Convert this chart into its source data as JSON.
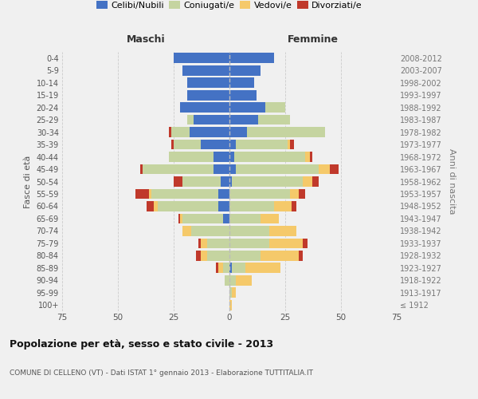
{
  "age_groups": [
    "100+",
    "95-99",
    "90-94",
    "85-89",
    "80-84",
    "75-79",
    "70-74",
    "65-69",
    "60-64",
    "55-59",
    "50-54",
    "45-49",
    "40-44",
    "35-39",
    "30-34",
    "25-29",
    "20-24",
    "15-19",
    "10-14",
    "5-9",
    "0-4"
  ],
  "birth_years": [
    "≤ 1912",
    "1913-1917",
    "1918-1922",
    "1923-1927",
    "1928-1932",
    "1933-1937",
    "1938-1942",
    "1943-1947",
    "1948-1952",
    "1953-1957",
    "1958-1962",
    "1963-1967",
    "1968-1972",
    "1973-1977",
    "1978-1982",
    "1983-1987",
    "1988-1992",
    "1993-1997",
    "1998-2002",
    "2003-2007",
    "2008-2012"
  ],
  "colors": {
    "celibi": "#4472C4",
    "coniugati": "#c5d4a0",
    "vedovi": "#f5c96a",
    "divorziati": "#c0392b"
  },
  "maschi": {
    "celibi": [
      0,
      0,
      0,
      0,
      0,
      0,
      0,
      3,
      5,
      5,
      4,
      7,
      7,
      13,
      18,
      16,
      22,
      19,
      19,
      21,
      25
    ],
    "coniugati": [
      0,
      0,
      2,
      3,
      10,
      10,
      17,
      18,
      27,
      30,
      17,
      32,
      20,
      12,
      8,
      3,
      0,
      0,
      0,
      0,
      0
    ],
    "vedovi": [
      0,
      0,
      0,
      2,
      3,
      3,
      4,
      1,
      2,
      1,
      0,
      0,
      0,
      0,
      0,
      0,
      0,
      0,
      0,
      0,
      0
    ],
    "divorziati": [
      0,
      0,
      0,
      1,
      2,
      1,
      0,
      1,
      3,
      6,
      4,
      1,
      0,
      1,
      1,
      0,
      0,
      0,
      0,
      0,
      0
    ]
  },
  "femmine": {
    "nubili": [
      0,
      0,
      0,
      1,
      0,
      0,
      0,
      0,
      0,
      0,
      1,
      3,
      2,
      3,
      8,
      13,
      16,
      12,
      11,
      14,
      20
    ],
    "coniugate": [
      0,
      1,
      3,
      6,
      14,
      18,
      18,
      14,
      20,
      27,
      32,
      37,
      32,
      23,
      35,
      14,
      9,
      0,
      0,
      0,
      0
    ],
    "vedove": [
      1,
      2,
      7,
      16,
      17,
      15,
      12,
      8,
      8,
      4,
      4,
      5,
      2,
      1,
      0,
      0,
      0,
      0,
      0,
      0,
      0
    ],
    "divorziate": [
      0,
      0,
      0,
      0,
      2,
      2,
      0,
      0,
      2,
      3,
      3,
      4,
      1,
      2,
      0,
      0,
      0,
      0,
      0,
      0,
      0
    ]
  },
  "xlim": 75,
  "title": "Popolazione per età, sesso e stato civile - 2013",
  "subtitle": "COMUNE DI CELLENO (VT) - Dati ISTAT 1° gennaio 2013 - Elaborazione TUTTITALIA.IT",
  "xlabel_left": "Maschi",
  "xlabel_right": "Femmine",
  "ylabel_left": "Fasce di età",
  "ylabel_right": "Anni di nascita",
  "legend_labels": [
    "Celibi/Nubili",
    "Coniugati/e",
    "Vedovi/e",
    "Divorziati/e"
  ],
  "background_color": "#f0f0f0"
}
